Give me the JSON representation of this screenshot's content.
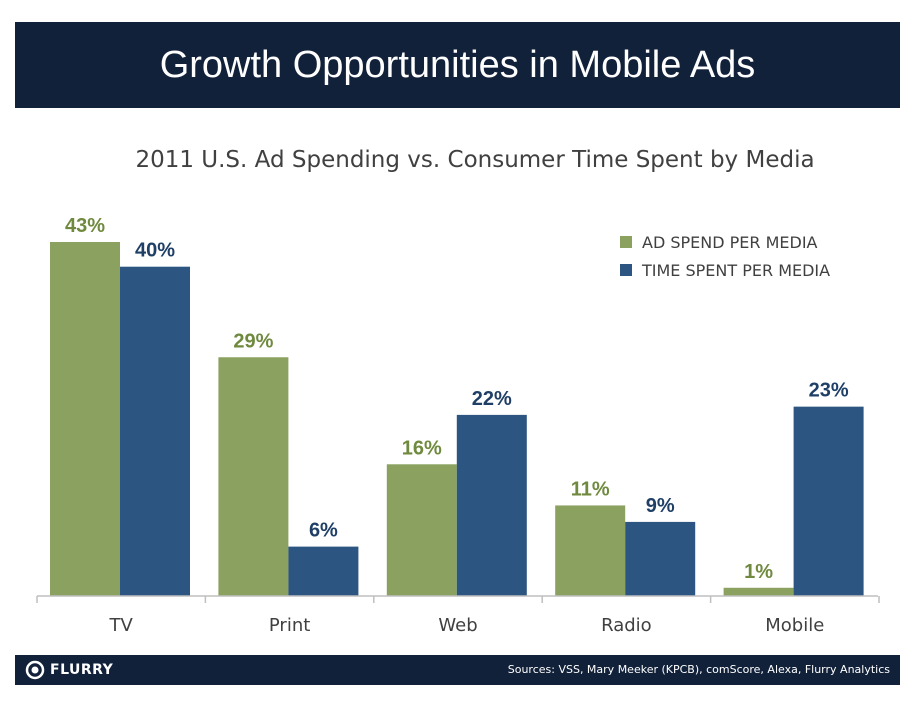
{
  "header": {
    "title": "Growth Opportunities in Mobile Ads"
  },
  "footer": {
    "brand": "FLURRY",
    "sources": "Sources: VSS, Mary Meeker (KPCB), comScore, Alexa, Flurry Analytics"
  },
  "colors": {
    "ad_spend": "#8aa160",
    "time_spent": "#2c5581",
    "header_bg": "#12213a"
  },
  "chart_data": {
    "type": "bar",
    "title": "2011 U.S. Ad Spending vs. Consumer Time Spent by Media",
    "categories": [
      "TV",
      "Print",
      "Web",
      "Radio",
      "Mobile"
    ],
    "series": [
      {
        "name": "AD SPEND PER MEDIA",
        "values": [
          43,
          29,
          16,
          11,
          1
        ],
        "labels": [
          "43%",
          "29%",
          "16%",
          "11%",
          "1%"
        ],
        "color": "#8aa160"
      },
      {
        "name": "TIME SPENT PER MEDIA",
        "values": [
          40,
          6,
          22,
          9,
          23
        ],
        "labels": [
          "40%",
          "6%",
          "22%",
          "9%",
          "23%"
        ],
        "color": "#2c5581"
      }
    ],
    "xlabel": "",
    "ylabel": "",
    "ylim": [
      0,
      50
    ],
    "grid": false,
    "legend": "top-right"
  }
}
